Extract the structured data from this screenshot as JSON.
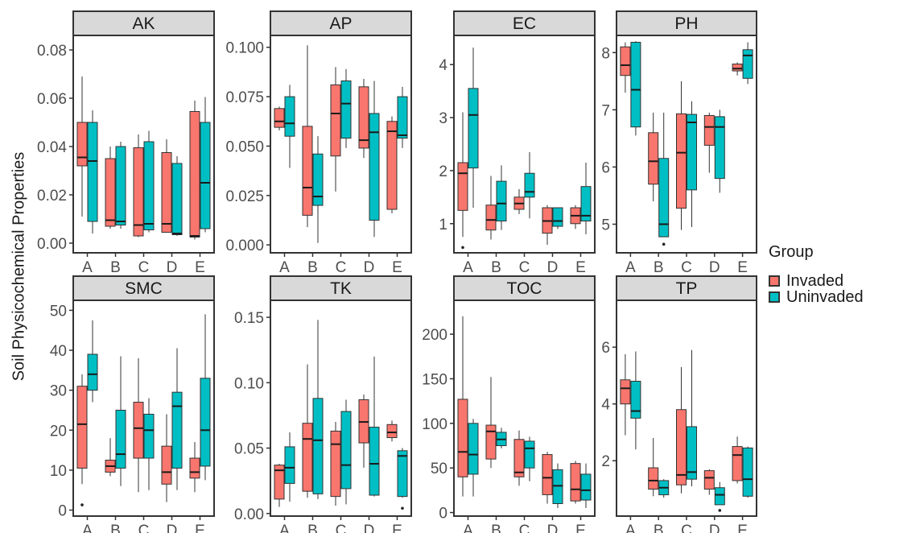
{
  "figure": {
    "ylabel": "Soil Physicochemical Properties"
  },
  "legend": {
    "title": "Group",
    "items": [
      {
        "label": "Invaded",
        "color": "#F8766D"
      },
      {
        "label": "Uninvaded",
        "color": "#00BFC4"
      }
    ]
  },
  "chart_data": [
    {
      "type": "boxplot",
      "title": "AK",
      "categories": [
        "A",
        "B",
        "C",
        "D",
        "E"
      ],
      "ylim": [
        -0.004,
        0.086
      ],
      "yticks": [
        "0.00",
        "0.02",
        "0.04",
        "0.06",
        "0.08"
      ],
      "ytick_values": [
        0,
        0.02,
        0.04,
        0.06,
        0.08
      ],
      "series": [
        {
          "name": "Invaded",
          "boxes": [
            {
              "min": 0.011,
              "q1": 0.032,
              "median": 0.0355,
              "q3": 0.05,
              "max": 0.069
            },
            {
              "min": 0.006,
              "q1": 0.007,
              "median": 0.0095,
              "q3": 0.035,
              "max": 0.04
            },
            {
              "min": 0.0025,
              "q1": 0.003,
              "median": 0.0075,
              "q3": 0.0395,
              "max": 0.045
            },
            {
              "min": 0.0045,
              "q1": 0.0045,
              "median": 0.008,
              "q3": 0.0375,
              "max": 0.043
            },
            {
              "min": 0.0015,
              "q1": 0.0025,
              "median": 0.003,
              "q3": 0.0545,
              "max": 0.059
            }
          ],
          "outliers": []
        },
        {
          "name": "Uninvaded",
          "boxes": [
            {
              "min": 0.004,
              "q1": 0.009,
              "median": 0.034,
              "q3": 0.05,
              "max": 0.055
            },
            {
              "min": 0.006,
              "q1": 0.0075,
              "median": 0.009,
              "q3": 0.04,
              "max": 0.042
            },
            {
              "min": 0.0045,
              "q1": 0.0055,
              "median": 0.008,
              "q3": 0.042,
              "max": 0.0465
            },
            {
              "min": 0.003,
              "q1": 0.0035,
              "median": 0.004,
              "q3": 0.033,
              "max": 0.036
            },
            {
              "min": 0.0045,
              "q1": 0.006,
              "median": 0.025,
              "q3": 0.05,
              "max": 0.0605
            }
          ],
          "outliers": []
        }
      ]
    },
    {
      "type": "boxplot",
      "title": "AP",
      "categories": [
        "A",
        "B",
        "C",
        "D",
        "E"
      ],
      "ylim": [
        -0.004,
        0.106
      ],
      "yticks": [
        "0.000",
        "0.025",
        "0.050",
        "0.075",
        "0.100"
      ],
      "ytick_values": [
        0,
        0.025,
        0.05,
        0.075,
        0.1
      ],
      "series": [
        {
          "name": "Invaded",
          "boxes": [
            {
              "min": 0.058,
              "q1": 0.0595,
              "median": 0.0625,
              "q3": 0.069,
              "max": 0.07
            },
            {
              "min": 0.009,
              "q1": 0.015,
              "median": 0.029,
              "q3": 0.06,
              "max": 0.101
            },
            {
              "min": 0.027,
              "q1": 0.045,
              "median": 0.0665,
              "q3": 0.081,
              "max": 0.09
            },
            {
              "min": 0.044,
              "q1": 0.049,
              "median": 0.053,
              "q3": 0.08,
              "max": 0.084
            },
            {
              "min": 0.016,
              "q1": 0.018,
              "median": 0.0575,
              "q3": 0.0625,
              "max": 0.065
            }
          ],
          "outliers": []
        },
        {
          "name": "Uninvaded",
          "boxes": [
            {
              "min": 0.039,
              "q1": 0.055,
              "median": 0.0615,
              "q3": 0.075,
              "max": 0.081
            },
            {
              "min": 0.001,
              "q1": 0.02,
              "median": 0.0245,
              "q3": 0.046,
              "max": 0.055
            },
            {
              "min": 0.049,
              "q1": 0.054,
              "median": 0.0715,
              "q3": 0.083,
              "max": 0.089
            },
            {
              "min": 0.004,
              "q1": 0.0125,
              "median": 0.057,
              "q3": 0.0665,
              "max": 0.083
            },
            {
              "min": 0.049,
              "q1": 0.054,
              "median": 0.0555,
              "q3": 0.075,
              "max": 0.08
            }
          ],
          "outliers": []
        }
      ]
    },
    {
      "type": "boxplot",
      "title": "EC",
      "categories": [
        "A",
        "B",
        "C",
        "D",
        "E"
      ],
      "ylim": [
        0.45,
        4.55
      ],
      "yticks": [
        "1",
        "2",
        "3",
        "4"
      ],
      "ytick_values": [
        1,
        2,
        3,
        4
      ],
      "series": [
        {
          "name": "Invaded",
          "boxes": [
            {
              "min": 0.75,
              "q1": 1.25,
              "median": 1.95,
              "q3": 2.15,
              "max": 3.1
            },
            {
              "min": 0.7,
              "q1": 0.88,
              "median": 1.07,
              "q3": 1.35,
              "max": 1.9
            },
            {
              "min": 1.18,
              "q1": 1.27,
              "median": 1.38,
              "q3": 1.5,
              "max": 1.65
            },
            {
              "min": 0.6,
              "q1": 0.82,
              "median": 1.05,
              "q3": 1.3,
              "max": 1.35
            },
            {
              "min": 0.9,
              "q1": 1.0,
              "median": 1.15,
              "q3": 1.3,
              "max": 1.35
            }
          ],
          "outliers": [
            0.55
          ]
        },
        {
          "name": "Uninvaded",
          "boxes": [
            {
              "min": 1.3,
              "q1": 2.05,
              "median": 3.05,
              "q3": 3.55,
              "max": 4.32
            },
            {
              "min": 0.88,
              "q1": 1.05,
              "median": 1.38,
              "q3": 1.8,
              "max": 2.1
            },
            {
              "min": 1.1,
              "q1": 1.5,
              "median": 1.6,
              "q3": 1.95,
              "max": 2.35
            },
            {
              "min": 0.9,
              "q1": 0.95,
              "median": 1.05,
              "q3": 1.3,
              "max": 1.3
            },
            {
              "min": 0.8,
              "q1": 1.05,
              "median": 1.15,
              "q3": 1.7,
              "max": 2.15
            }
          ],
          "outliers": []
        }
      ]
    },
    {
      "type": "boxplot",
      "title": "PH",
      "categories": [
        "A",
        "B",
        "C",
        "D",
        "E"
      ],
      "ylim": [
        4.5,
        8.3
      ],
      "yticks": [
        "5",
        "6",
        "7",
        "8"
      ],
      "ytick_values": [
        5,
        6,
        7,
        8
      ],
      "series": [
        {
          "name": "Invaded",
          "boxes": [
            {
              "min": 7.3,
              "q1": 7.6,
              "median": 7.78,
              "q3": 8.1,
              "max": 8.18
            },
            {
              "min": 5.4,
              "q1": 5.7,
              "median": 6.1,
              "q3": 6.6,
              "max": 6.95
            },
            {
              "min": 4.9,
              "q1": 5.28,
              "median": 6.25,
              "q3": 6.93,
              "max": 7.5
            },
            {
              "min": 5.9,
              "q1": 6.38,
              "median": 6.7,
              "q3": 6.9,
              "max": 6.95
            },
            {
              "min": 7.6,
              "q1": 7.68,
              "median": 7.72,
              "q3": 7.8,
              "max": 7.83
            }
          ],
          "outliers": []
        },
        {
          "name": "Uninvaded",
          "boxes": [
            {
              "min": 6.55,
              "q1": 6.7,
              "median": 7.35,
              "q3": 8.18,
              "max": 8.2
            },
            {
              "min": 4.78,
              "q1": 4.78,
              "median": 5.0,
              "q3": 6.15,
              "max": 6.95
            },
            {
              "min": 4.95,
              "q1": 5.6,
              "median": 6.78,
              "q3": 6.92,
              "max": 7.15
            },
            {
              "min": 5.55,
              "q1": 5.8,
              "median": 6.7,
              "q3": 6.88,
              "max": 7.0
            },
            {
              "min": 7.45,
              "q1": 7.55,
              "median": 7.95,
              "q3": 8.05,
              "max": 8.18
            }
          ],
          "outliers": [
            4.65
          ]
        }
      ]
    },
    {
      "type": "boxplot",
      "title": "SMC",
      "categories": [
        "A",
        "B",
        "C",
        "D",
        "E"
      ],
      "ylim": [
        -1.5,
        52.5
      ],
      "yticks": [
        "0",
        "10",
        "20",
        "30",
        "40",
        "50"
      ],
      "ytick_values": [
        0,
        10,
        20,
        30,
        40,
        50
      ],
      "series": [
        {
          "name": "Invaded",
          "boxes": [
            {
              "min": 6.5,
              "q1": 10.5,
              "median": 21.5,
              "q3": 31,
              "max": 34
            },
            {
              "min": 8.5,
              "q1": 9.5,
              "median": 11,
              "q3": 12.5,
              "max": 18
            },
            {
              "min": 4.5,
              "q1": 13,
              "median": 20.5,
              "q3": 27,
              "max": 38
            },
            {
              "min": 2,
              "q1": 6.5,
              "median": 9.5,
              "q3": 16,
              "max": 24
            },
            {
              "min": 4.5,
              "q1": 8,
              "median": 9.5,
              "q3": 13,
              "max": 17
            }
          ],
          "outliers": [
            1.3
          ]
        },
        {
          "name": "Uninvaded",
          "boxes": [
            {
              "min": 27,
              "q1": 30,
              "median": 34,
              "q3": 39,
              "max": 47.5
            },
            {
              "min": 6,
              "q1": 10.5,
              "median": 14,
              "q3": 25,
              "max": 38.5
            },
            {
              "min": 5,
              "q1": 13,
              "median": 20,
              "q3": 24,
              "max": 28
            },
            {
              "min": 5,
              "q1": 10.5,
              "median": 26,
              "q3": 29.5,
              "max": 40.5
            },
            {
              "min": 7.5,
              "q1": 11,
              "median": 20,
              "q3": 33,
              "max": 49
            }
          ],
          "outliers": []
        }
      ]
    },
    {
      "type": "boxplot",
      "title": "TK",
      "categories": [
        "A",
        "B",
        "C",
        "D",
        "E"
      ],
      "ylim": [
        -0.002,
        0.163
      ],
      "yticks": [
        "0.00",
        "0.05",
        "0.10",
        "0.15"
      ],
      "ytick_values": [
        0,
        0.05,
        0.1,
        0.15
      ],
      "series": [
        {
          "name": "Invaded",
          "boxes": [
            {
              "min": 0.005,
              "q1": 0.011,
              "median": 0.033,
              "q3": 0.037,
              "max": 0.038
            },
            {
              "min": 0.012,
              "q1": 0.017,
              "median": 0.057,
              "q3": 0.069,
              "max": 0.114
            },
            {
              "min": 0.006,
              "q1": 0.013,
              "median": 0.053,
              "q3": 0.063,
              "max": 0.07
            },
            {
              "min": 0.035,
              "q1": 0.054,
              "median": 0.07,
              "q3": 0.087,
              "max": 0.091
            },
            {
              "min": 0.055,
              "q1": 0.058,
              "median": 0.062,
              "q3": 0.068,
              "max": 0.071
            }
          ],
          "outliers": []
        },
        {
          "name": "Uninvaded",
          "boxes": [
            {
              "min": 0.009,
              "q1": 0.023,
              "median": 0.035,
              "q3": 0.051,
              "max": 0.062
            },
            {
              "min": 0.011,
              "q1": 0.015,
              "median": 0.056,
              "q3": 0.088,
              "max": 0.148
            },
            {
              "min": 0.007,
              "q1": 0.019,
              "median": 0.037,
              "q3": 0.078,
              "max": 0.087
            },
            {
              "min": 0.013,
              "q1": 0.014,
              "median": 0.038,
              "q3": 0.066,
              "max": 0.12
            },
            {
              "min": 0.012,
              "q1": 0.013,
              "median": 0.044,
              "q3": 0.048,
              "max": 0.05
            }
          ],
          "outliers": [
            0.004
          ]
        }
      ]
    },
    {
      "type": "boxplot",
      "title": "TOC",
      "categories": [
        "A",
        "B",
        "C",
        "D",
        "E"
      ],
      "ylim": [
        -4,
        238
      ],
      "yticks": [
        "0",
        "50",
        "100",
        "150",
        "200"
      ],
      "ytick_values": [
        0,
        50,
        100,
        150,
        200
      ],
      "series": [
        {
          "name": "Invaded",
          "boxes": [
            {
              "min": 18,
              "q1": 40,
              "median": 68,
              "q3": 127,
              "max": 220
            },
            {
              "min": 50,
              "q1": 60,
              "median": 91,
              "q3": 98,
              "max": 152
            },
            {
              "min": 30,
              "q1": 40,
              "median": 45,
              "q3": 82,
              "max": 92
            },
            {
              "min": 10,
              "q1": 20,
              "median": 39,
              "q3": 65,
              "max": 68
            },
            {
              "min": 10,
              "q1": 13,
              "median": 26,
              "q3": 55,
              "max": 58
            }
          ],
          "outliers": []
        },
        {
          "name": "Uninvaded",
          "boxes": [
            {
              "min": 18,
              "q1": 43,
              "median": 65,
              "q3": 100,
              "max": 105
            },
            {
              "min": 72,
              "q1": 75,
              "median": 82,
              "q3": 90,
              "max": 95
            },
            {
              "min": 35,
              "q1": 50,
              "median": 72,
              "q3": 80,
              "max": 85
            },
            {
              "min": 5,
              "q1": 10,
              "median": 30,
              "q3": 48,
              "max": 55
            },
            {
              "min": 5,
              "q1": 14,
              "median": 25,
              "q3": 43,
              "max": 55
            }
          ],
          "outliers": []
        }
      ]
    },
    {
      "type": "boxplot",
      "title": "TP",
      "categories": [
        "A",
        "B",
        "C",
        "D",
        "E"
      ],
      "ylim": [
        0.05,
        7.65
      ],
      "yticks": [
        "2",
        "4",
        "6"
      ],
      "ytick_values": [
        2,
        4,
        6
      ],
      "series": [
        {
          "name": "Invaded",
          "boxes": [
            {
              "min": 2.9,
              "q1": 4.0,
              "median": 4.55,
              "q3": 4.85,
              "max": 5.75
            },
            {
              "min": 0.75,
              "q1": 1.0,
              "median": 1.3,
              "q3": 1.75,
              "max": 2.8
            },
            {
              "min": 0.85,
              "q1": 1.15,
              "median": 1.5,
              "q3": 3.8,
              "max": 5.3
            },
            {
              "min": 0.8,
              "q1": 1.0,
              "median": 1.4,
              "q3": 1.65,
              "max": 1.7
            },
            {
              "min": 1.2,
              "q1": 1.3,
              "median": 2.2,
              "q3": 2.5,
              "max": 2.85
            }
          ],
          "outliers": []
        },
        {
          "name": "Uninvaded",
          "boxes": [
            {
              "min": 2.4,
              "q1": 3.5,
              "median": 3.75,
              "q3": 4.8,
              "max": 5.85
            },
            {
              "min": 0.7,
              "q1": 0.8,
              "median": 1.05,
              "q3": 1.3,
              "max": 1.35
            },
            {
              "min": 1.1,
              "q1": 1.35,
              "median": 1.6,
              "q3": 3.2,
              "max": 5.9
            },
            {
              "min": 0.45,
              "q1": 0.45,
              "median": 0.8,
              "q3": 1.05,
              "max": 1.25
            },
            {
              "min": 0.7,
              "q1": 0.75,
              "median": 1.35,
              "q3": 2.45,
              "max": 2.5
            }
          ],
          "outliers": [
            0.25
          ]
        }
      ]
    }
  ]
}
